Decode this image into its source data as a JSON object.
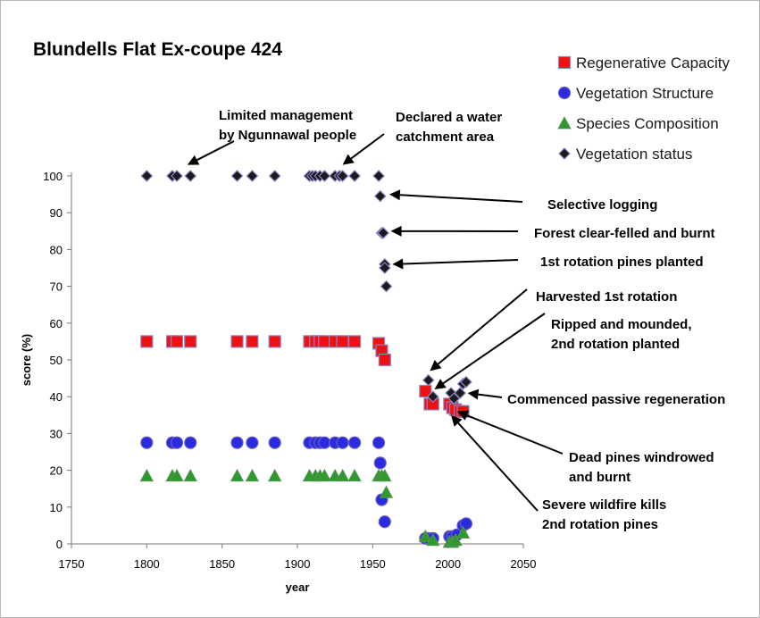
{
  "chart_data": {
    "type": "scatter",
    "title": "Blundells Flat  Ex-coupe 424",
    "xlabel": "year",
    "ylabel": "score  (%)",
    "xlim": [
      1750,
      2050
    ],
    "ylim": [
      0,
      100
    ],
    "xticks": [
      1750,
      1800,
      1850,
      1900,
      1950,
      2000,
      2050
    ],
    "yticks": [
      0,
      10,
      20,
      30,
      40,
      50,
      60,
      70,
      80,
      90,
      100
    ],
    "grid": false,
    "legend_position": "top-right",
    "series": [
      {
        "name": "Regenerative Capacity",
        "marker": "square",
        "color": "#ee1111",
        "x": [
          1800,
          1817,
          1820,
          1829,
          1860,
          1870,
          1885,
          1908,
          1912,
          1915,
          1918,
          1925,
          1930,
          1938,
          1954,
          1956,
          1958,
          1985,
          1988,
          1990,
          2001,
          2003,
          2005,
          2008,
          2010
        ],
        "y": [
          55,
          55,
          55,
          55,
          55,
          55,
          55,
          55,
          55,
          55,
          55,
          55,
          55,
          55,
          54.5,
          52.5,
          50,
          41.5,
          38,
          38,
          38,
          37,
          36.5,
          36,
          36
        ]
      },
      {
        "name": "Vegetation Structure",
        "marker": "circle",
        "color": "#2a2ae0",
        "x": [
          1800,
          1817,
          1820,
          1829,
          1860,
          1870,
          1885,
          1908,
          1912,
          1915,
          1918,
          1925,
          1930,
          1938,
          1954,
          1955,
          1956,
          1958,
          1985,
          1987,
          1990,
          2001,
          2003,
          2006,
          2010,
          2012
        ],
        "y": [
          27.5,
          27.5,
          27.5,
          27.5,
          27.5,
          27.5,
          27.5,
          27.5,
          27.5,
          27.5,
          27.5,
          27.5,
          27.5,
          27.5,
          27.5,
          22,
          12,
          6,
          1.5,
          1.5,
          1.5,
          2,
          2,
          2.5,
          5,
          5.5
        ]
      },
      {
        "name": "Species Composition",
        "marker": "triangle",
        "color": "#2e9a2e",
        "x": [
          1800,
          1817,
          1820,
          1829,
          1860,
          1870,
          1885,
          1908,
          1912,
          1915,
          1918,
          1925,
          1930,
          1938,
          1954,
          1956,
          1958,
          1959,
          1985,
          1990,
          2001,
          2003,
          2005,
          2010
        ],
        "y": [
          18.5,
          18.5,
          18.5,
          18.5,
          18.5,
          18.5,
          18.5,
          18.5,
          18.5,
          18.5,
          18.5,
          18.5,
          18.5,
          18.5,
          18.5,
          18.5,
          18.5,
          14,
          2,
          1,
          0.5,
          0.5,
          1,
          3
        ]
      },
      {
        "name": "Vegetation status",
        "marker": "diamond",
        "color": "#1b1b1b",
        "x": [
          1800,
          1817,
          1820,
          1829,
          1860,
          1870,
          1885,
          1908,
          1910,
          1912,
          1915,
          1918,
          1925,
          1928,
          1930,
          1938,
          1954,
          1955,
          1956,
          1957,
          1958,
          1958,
          1959,
          1987,
          1990,
          2002,
          2004,
          2008,
          2010,
          2012
        ],
        "y": [
          100,
          100,
          100,
          100,
          100,
          100,
          100,
          100,
          100,
          100,
          100,
          100,
          100,
          100,
          100,
          100,
          100,
          94.5,
          84.5,
          84.5,
          76,
          75,
          70,
          44.5,
          40,
          41,
          39.5,
          41,
          43.5,
          44
        ]
      }
    ],
    "annotations": [
      {
        "lines": [
          "Limited management",
          "by Ngunnawal people"
        ],
        "target": [
          1827,
          103
        ]
      },
      {
        "lines": [
          "Declared a water",
          "catchment area"
        ],
        "target": [
          1930,
          103
        ]
      },
      {
        "lines": [
          "Selective logging"
        ],
        "target": [
          1961,
          95
        ]
      },
      {
        "lines": [
          "Forest clear-felled and burnt"
        ],
        "target": [
          1962,
          85
        ]
      },
      {
        "lines": [
          "1st rotation pines planted"
        ],
        "target": [
          1963,
          76
        ]
      },
      {
        "lines": [
          "Harvested 1st rotation"
        ],
        "target": [
          1988,
          47
        ]
      },
      {
        "lines": [
          "Ripped and mounded,",
          "2nd rotation planted"
        ],
        "target": [
          1991,
          42
        ]
      },
      {
        "lines": [
          "Commenced passive regeneration"
        ],
        "target": [
          2013,
          41
        ]
      },
      {
        "lines": [
          "Dead pines windrowed",
          "and burnt"
        ],
        "target": [
          2006,
          36
        ]
      },
      {
        "lines": [
          "Severe wildfire kills",
          "2nd rotation pines"
        ],
        "target": [
          2002,
          35
        ]
      }
    ]
  }
}
